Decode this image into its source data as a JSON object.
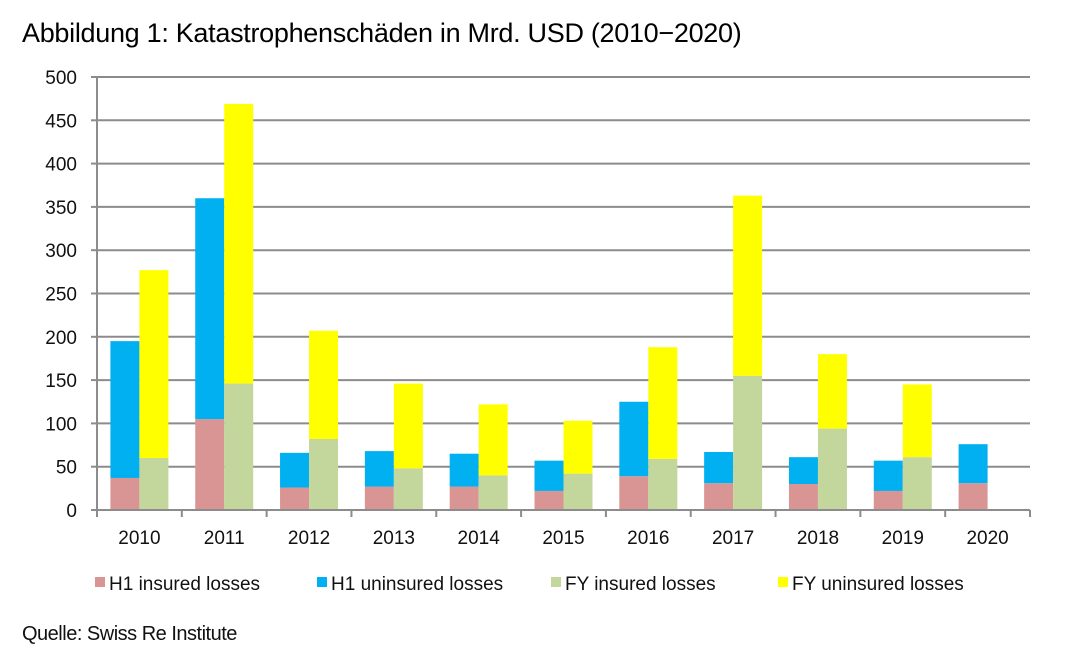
{
  "chart_data": {
    "type": "bar",
    "subtype": "grouped-stacked",
    "title": "Abbildung 1: Katastrophenschäden in Mrd. USD (2010−2020)",
    "source": "Quelle: Swiss Re Institute",
    "xlabel": "",
    "ylabel": "",
    "ylim": [
      0,
      500
    ],
    "yticks": [
      0,
      50,
      100,
      150,
      200,
      250,
      300,
      350,
      400,
      450,
      500
    ],
    "grid": true,
    "legend_position": "bottom",
    "categories": [
      "2010",
      "2011",
      "2012",
      "2013",
      "2014",
      "2015",
      "2016",
      "2017",
      "2018",
      "2019",
      "2020"
    ],
    "stacks": [
      {
        "name": "H1",
        "series": [
          {
            "name": "H1 insured losses",
            "color": "#D99594",
            "values": [
              37,
              105,
              26,
              27,
              27,
              22,
              39,
              31,
              30,
              22,
              31
            ]
          },
          {
            "name": "H1 uninsured losses",
            "color": "#00B0F0",
            "values": [
              158,
              255,
              40,
              41,
              38,
              35,
              86,
              36,
              31,
              35,
              45
            ]
          }
        ]
      },
      {
        "name": "FY",
        "series": [
          {
            "name": "FY insured losses",
            "color": "#C3D69B",
            "values": [
              60,
              146,
              82,
              48,
              40,
              42,
              59,
              155,
              94,
              61,
              null
            ]
          },
          {
            "name": "FY uninsured losses",
            "color": "#FFFF00",
            "values": [
              217,
              323,
              125,
              98,
              82,
              61,
              129,
              208,
              86,
              84,
              null
            ]
          }
        ]
      }
    ]
  }
}
